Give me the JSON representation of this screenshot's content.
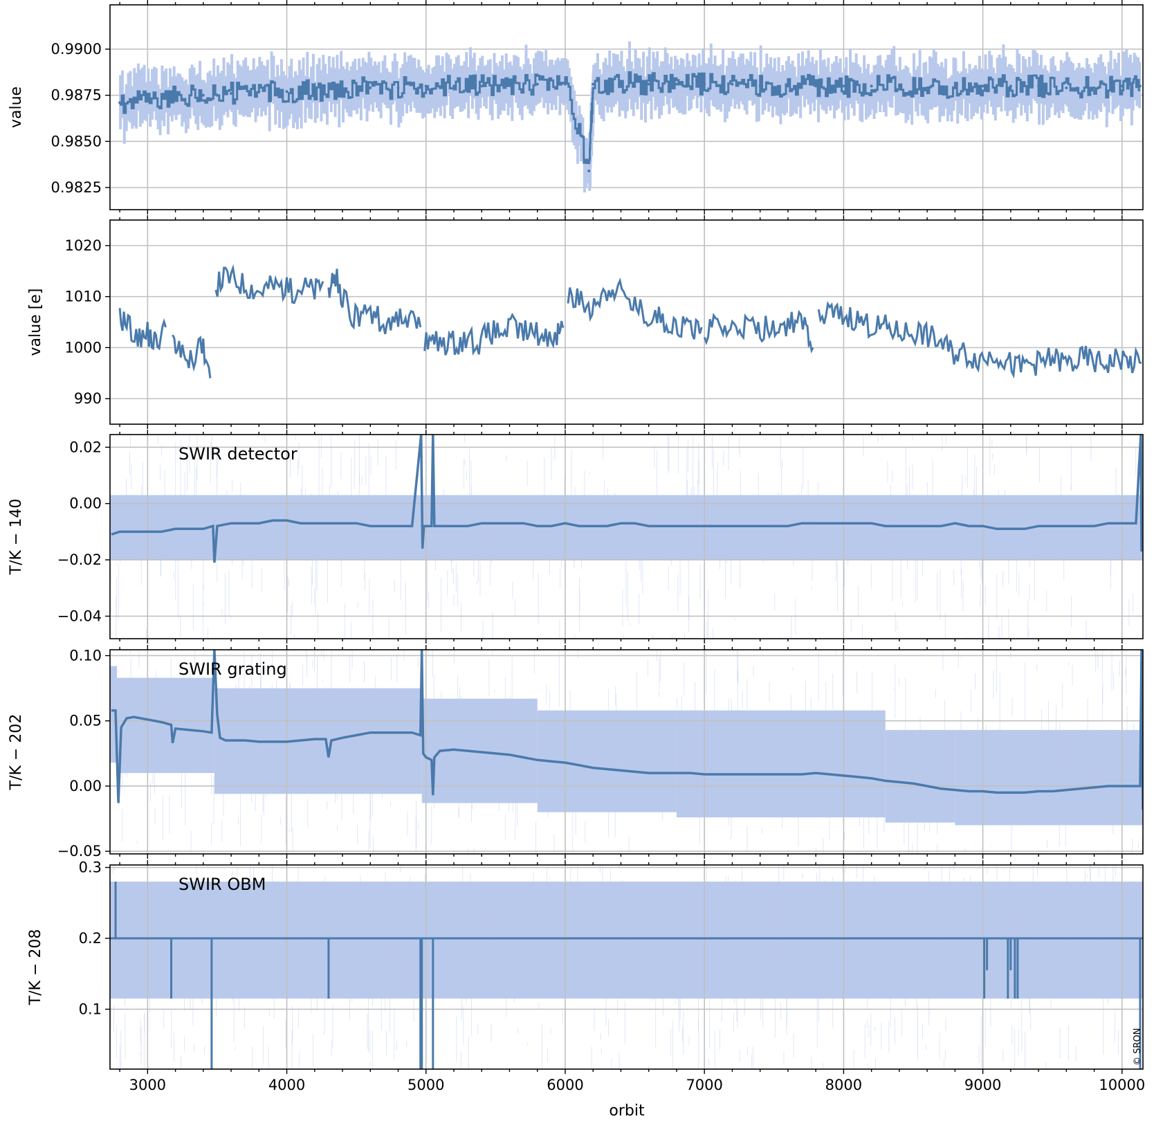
{
  "copyright": "© SRON",
  "chart_data": [
    {
      "type": "line",
      "panel": 1,
      "title": "",
      "xlabel": "",
      "ylabel": "value",
      "xlim": [
        2730,
        10150
      ],
      "ylim": [
        0.9813,
        0.9924
      ],
      "x_ticks": [
        3000,
        4000,
        5000,
        6000,
        7000,
        8000,
        9000,
        10000
      ],
      "y_ticks": [
        0.9825,
        0.985,
        0.9875,
        0.99
      ],
      "y_tick_labels": [
        "0.9825",
        "0.9850",
        "0.9875",
        "0.9900"
      ],
      "grid": true,
      "series": [
        {
          "style": "step line with light-blue error band",
          "x": [
            2800,
            3000,
            3200,
            3400,
            3600,
            3800,
            4000,
            4200,
            4400,
            4600,
            4800,
            5000,
            5200,
            5400,
            5600,
            5800,
            6000,
            6170,
            6200,
            6400,
            6600,
            6800,
            7000,
            7200,
            7400,
            7600,
            7800,
            8000,
            8200,
            8400,
            8600,
            8800,
            9000,
            9200,
            9400,
            9600,
            9800,
            10000,
            10130
          ],
          "values": [
            0.9871,
            0.9872,
            0.9874,
            0.9875,
            0.9876,
            0.9877,
            0.9877,
            0.9878,
            0.9878,
            0.9879,
            0.9879,
            0.988,
            0.988,
            0.988,
            0.9881,
            0.9881,
            0.9881,
            0.9834,
            0.9881,
            0.9882,
            0.9881,
            0.9881,
            0.9881,
            0.9881,
            0.988,
            0.988,
            0.988,
            0.988,
            0.988,
            0.988,
            0.9879,
            0.9879,
            0.988,
            0.988,
            0.988,
            0.9879,
            0.9879,
            0.988,
            0.988
          ],
          "spread": 0.0012
        }
      ]
    },
    {
      "type": "line",
      "panel": 2,
      "title": "",
      "xlabel": "",
      "ylabel": "value [e]",
      "xlim": [
        2730,
        10150
      ],
      "ylim": [
        985,
        1025
      ],
      "y_ticks": [
        990,
        1000,
        1010,
        1020
      ],
      "y_tick_labels": [
        "990",
        "1000",
        "1010",
        "1020"
      ],
      "grid": true,
      "series": [
        {
          "segments": [
            {
              "x": [
                2800,
                2860,
                2930,
                3000,
                3060,
                3130
              ],
              "values": [
                1006,
                1005,
                1001,
                1003,
                1001,
                1004
              ]
            },
            {
              "x": [
                3180,
                3250,
                3320,
                3390,
                3450
              ],
              "values": [
                1000,
                999,
                998,
                1001,
                994
              ]
            },
            {
              "x": [
                3490,
                3560,
                3640,
                3720,
                3800,
                3880,
                3960,
                4040,
                4120,
                4200,
                4260
              ],
              "values": [
                1012,
                1014,
                1013,
                1012,
                1011,
                1012,
                1012,
                1011,
                1012,
                1011,
                1013
              ]
            },
            {
              "x": [
                4300,
                4340,
                4400,
                4480,
                4560,
                4640,
                4720,
                4800,
                4880,
                4960
              ],
              "values": [
                1011,
                1015,
                1010,
                1006,
                1007,
                1006,
                1005,
                1006,
                1005,
                1004
              ]
            },
            {
              "x": [
                4990,
                5060,
                5140,
                5220,
                5300,
                5380,
                5460,
                5540,
                5620,
                5700,
                5780,
                5860,
                5940,
                5990
              ],
              "values": [
                1001,
                1001,
                1001,
                1001,
                1002,
                1001,
                1003,
                1003,
                1004,
                1003,
                1003,
                1002,
                1003,
                1004
              ]
            },
            {
              "x": [
                6020,
                6100,
                6180,
                6260,
                6340,
                6420,
                6500,
                6580,
                6660,
                6740,
                6820,
                6900,
                6980
              ],
              "values": [
                1010,
                1009,
                1008,
                1010,
                1012,
                1010,
                1008,
                1006,
                1006,
                1005,
                1004,
                1004,
                1004
              ]
            },
            {
              "x": [
                7000,
                7080,
                7160,
                7240,
                7320,
                7400,
                7480,
                7560,
                7640,
                7720,
                7780
              ],
              "values": [
                1003,
                1004,
                1003,
                1004,
                1004,
                1003,
                1005,
                1004,
                1005,
                1004,
                1000
              ]
            },
            {
              "x": [
                7820,
                7900,
                7980,
                8060,
                8140,
                8220,
                8300,
                8380,
                8460,
                8540,
                8620,
                8700,
                8780,
                8860,
                8940,
                9020,
                9100,
                9180,
                9260,
                9340,
                9420,
                9500,
                9580,
                9660,
                9740,
                9820,
                9900,
                9980,
                10060,
                10140
              ],
              "values": [
                1005,
                1007,
                1006,
                1006,
                1005,
                1004,
                1004,
                1003,
                1003,
                1003,
                1002,
                1001,
                999,
                999,
                998,
                998,
                999,
                997,
                996,
                997,
                997,
                998,
                997,
                997,
                998,
                997,
                997,
                998,
                997,
                997
              ]
            }
          ]
        }
      ]
    },
    {
      "type": "line",
      "panel": 3,
      "title": "",
      "annotation": "SWIR detector",
      "xlabel": "",
      "ylabel": "T/K − 140",
      "xlim": [
        2730,
        10150
      ],
      "ylim": [
        -0.048,
        0.0245
      ],
      "y_ticks": [
        -0.04,
        -0.02,
        0.0,
        0.02
      ],
      "y_tick_labels": [
        "−0.04",
        "−0.02",
        "0.00",
        "0.02"
      ],
      "grid": true,
      "band": {
        "low": -0.02,
        "high": 0.003
      },
      "series": [
        {
          "x": [
            2740,
            2800,
            2900,
            3000,
            3100,
            3200,
            3300,
            3400,
            3470,
            3480,
            3500,
            3600,
            3700,
            3800,
            3900,
            4000,
            4100,
            4200,
            4300,
            4400,
            4500,
            4600,
            4700,
            4800,
            4900,
            4965,
            4975,
            4985,
            5000,
            5040,
            5050,
            5060,
            5100,
            5200,
            5300,
            5400,
            5500,
            5600,
            5700,
            5800,
            5900,
            6000,
            6100,
            6200,
            6300,
            6400,
            6500,
            6600,
            6700,
            6800,
            6900,
            7000,
            7100,
            7200,
            7300,
            7400,
            7500,
            7600,
            7700,
            7800,
            7900,
            8000,
            8100,
            8200,
            8300,
            8400,
            8500,
            8600,
            8700,
            8800,
            8900,
            9000,
            9100,
            9200,
            9300,
            9400,
            9500,
            9600,
            9700,
            9800,
            9900,
            10000,
            10100,
            10135,
            10140,
            10145,
            10150
          ],
          "values": [
            -0.011,
            -0.01,
            -0.01,
            -0.01,
            -0.01,
            -0.009,
            -0.009,
            -0.009,
            -0.008,
            -0.021,
            -0.008,
            -0.007,
            -0.007,
            -0.007,
            -0.006,
            -0.006,
            -0.007,
            -0.007,
            -0.007,
            -0.007,
            -0.007,
            -0.008,
            -0.008,
            -0.008,
            -0.008,
            0.0245,
            -0.016,
            -0.008,
            -0.008,
            -0.008,
            0.0245,
            -0.008,
            -0.008,
            -0.008,
            -0.008,
            -0.007,
            -0.007,
            -0.007,
            -0.007,
            -0.008,
            -0.008,
            -0.007,
            -0.008,
            -0.008,
            -0.008,
            -0.007,
            -0.007,
            -0.008,
            -0.008,
            -0.008,
            -0.008,
            -0.008,
            -0.008,
            -0.008,
            -0.008,
            -0.008,
            -0.008,
            -0.008,
            -0.007,
            -0.007,
            -0.007,
            -0.007,
            -0.007,
            -0.007,
            -0.008,
            -0.008,
            -0.008,
            -0.008,
            -0.008,
            -0.007,
            -0.008,
            -0.008,
            -0.009,
            -0.009,
            -0.009,
            -0.008,
            -0.008,
            -0.008,
            -0.008,
            -0.008,
            -0.007,
            -0.007,
            -0.007,
            0.0245,
            -0.017,
            -0.007,
            -0.007
          ]
        }
      ]
    },
    {
      "type": "line",
      "panel": 4,
      "title": "",
      "annotation": "SWIR grating",
      "xlabel": "",
      "ylabel": "T/K − 202",
      "xlim": [
        2730,
        10150
      ],
      "ylim": [
        -0.052,
        0.1045
      ],
      "y_ticks": [
        -0.05,
        0.0,
        0.05,
        0.1
      ],
      "y_tick_labels": [
        "−0.05",
        "0.00",
        "0.05",
        "0.10"
      ],
      "grid": true,
      "bands": [
        {
          "x": [
            2730,
            2780
          ],
          "low": 0.018,
          "high": 0.092
        },
        {
          "x": [
            2780,
            3480
          ],
          "low": 0.01,
          "high": 0.083
        },
        {
          "x": [
            3480,
            4970
          ],
          "low": -0.006,
          "high": 0.075
        },
        {
          "x": [
            4970,
            5800
          ],
          "low": -0.013,
          "high": 0.067
        },
        {
          "x": [
            5800,
            6800
          ],
          "low": -0.02,
          "high": 0.058
        },
        {
          "x": [
            6800,
            8300
          ],
          "low": -0.024,
          "high": 0.058
        },
        {
          "x": [
            8300,
            8800
          ],
          "low": -0.028,
          "high": 0.043
        },
        {
          "x": [
            8800,
            10150
          ],
          "low": -0.03,
          "high": 0.043
        }
      ],
      "series": [
        {
          "x": [
            2740,
            2770,
            2790,
            2810,
            2850,
            2900,
            3000,
            3100,
            3170,
            3180,
            3200,
            3300,
            3400,
            3460,
            3480,
            3500,
            3520,
            3560,
            3600,
            3700,
            3800,
            3900,
            4000,
            4100,
            4200,
            4280,
            4300,
            4320,
            4400,
            4500,
            4600,
            4700,
            4800,
            4900,
            4960,
            4970,
            4980,
            5000,
            5040,
            5050,
            5060,
            5100,
            5200,
            5300,
            5400,
            5500,
            5600,
            5700,
            5800,
            5900,
            6000,
            6100,
            6200,
            6300,
            6400,
            6500,
            6600,
            6700,
            6800,
            6900,
            7000,
            7100,
            7200,
            7300,
            7400,
            7500,
            7600,
            7700,
            7800,
            7900,
            8000,
            8100,
            8200,
            8300,
            8400,
            8500,
            8600,
            8700,
            8800,
            8900,
            9000,
            9100,
            9200,
            9300,
            9400,
            9500,
            9600,
            9700,
            9800,
            9900,
            10000,
            10100,
            10130,
            10140,
            10150
          ],
          "values": [
            0.058,
            0.058,
            -0.013,
            0.045,
            0.052,
            0.053,
            0.051,
            0.049,
            0.047,
            0.033,
            0.044,
            0.043,
            0.042,
            0.041,
            0.1045,
            0.055,
            0.037,
            0.035,
            0.035,
            0.035,
            0.034,
            0.034,
            0.034,
            0.035,
            0.036,
            0.036,
            0.022,
            0.035,
            0.037,
            0.039,
            0.041,
            0.041,
            0.041,
            0.041,
            0.039,
            0.1045,
            0.025,
            0.022,
            0.02,
            -0.007,
            0.022,
            0.027,
            0.028,
            0.027,
            0.026,
            0.025,
            0.024,
            0.022,
            0.02,
            0.019,
            0.018,
            0.016,
            0.014,
            0.013,
            0.012,
            0.011,
            0.01,
            0.01,
            0.01,
            0.01,
            0.009,
            0.009,
            0.009,
            0.009,
            0.009,
            0.009,
            0.009,
            0.009,
            0.01,
            0.009,
            0.008,
            0.007,
            0.006,
            0.004,
            0.003,
            0.002,
            0.0,
            -0.002,
            -0.003,
            -0.004,
            -0.004,
            -0.005,
            -0.005,
            -0.005,
            -0.004,
            -0.004,
            -0.003,
            -0.002,
            -0.001,
            0.0,
            0.0,
            0.0,
            0.0,
            0.1045,
            -0.018
          ]
        }
      ]
    },
    {
      "type": "line",
      "panel": 5,
      "title": "",
      "annotation": "SWIR OBM",
      "xlabel": "orbit",
      "ylabel": "T/K − 208",
      "xlim": [
        2730,
        10150
      ],
      "ylim": [
        0.0155,
        0.3035
      ],
      "x_ticks": [
        3000,
        4000,
        5000,
        6000,
        7000,
        8000,
        9000,
        10000
      ],
      "x_tick_labels": [
        "3000",
        "4000",
        "5000",
        "6000",
        "7000",
        "8000",
        "9000",
        "10000"
      ],
      "y_ticks": [
        0.1,
        0.2,
        0.3
      ],
      "y_tick_labels": [
        "0.1",
        "0.2",
        "0.3"
      ],
      "grid": true,
      "band": {
        "low": 0.115,
        "high": 0.28
      },
      "series": [
        {
          "baseline": 0.2,
          "drops": [
            {
              "x": 2770,
              "value": 0.28
            },
            {
              "x": 3170,
              "value": 0.115
            },
            {
              "x": 3460,
              "value": 0.0155
            },
            {
              "x": 4300,
              "value": 0.115
            },
            {
              "x": 4960,
              "value": 0.0155
            },
            {
              "x": 4970,
              "value": 0.0155
            },
            {
              "x": 5050,
              "value": 0.0155
            },
            {
              "x": 9010,
              "value": 0.115
            },
            {
              "x": 9030,
              "value": 0.155
            },
            {
              "x": 9180,
              "value": 0.115
            },
            {
              "x": 9200,
              "value": 0.155
            },
            {
              "x": 9230,
              "value": 0.115
            },
            {
              "x": 9250,
              "value": 0.115
            },
            {
              "x": 10130,
              "value": 0.0155
            }
          ]
        }
      ]
    }
  ]
}
